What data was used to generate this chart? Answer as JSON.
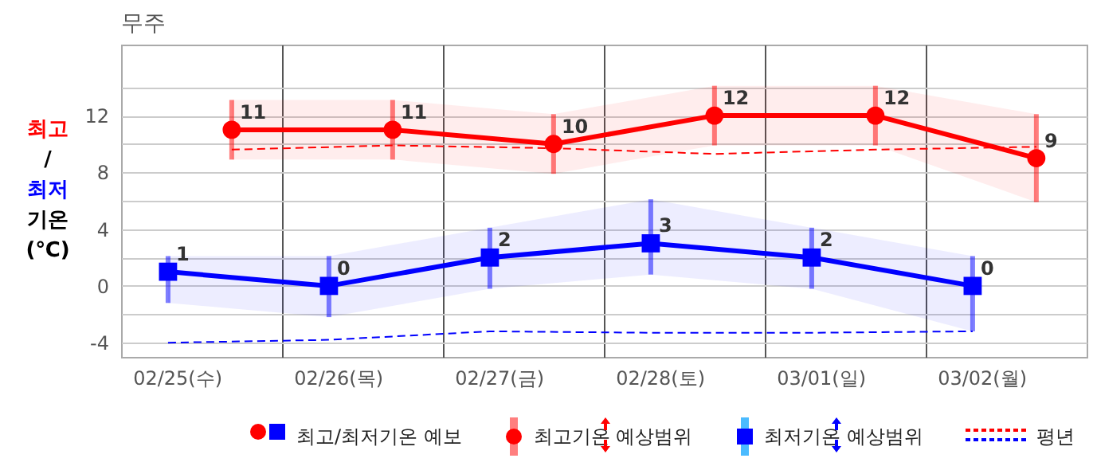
{
  "chart_data": {
    "type": "line",
    "title": "무주",
    "ylabel": "최고/최저 기온 (℃)",
    "xlim": [
      "--02-25T00:00",
      "--03-03T00:00"
    ],
    "xticks": [
      {
        "value": "--02-25T08:20",
        "label": "02/25(수)"
      },
      {
        "value": "--02-26T00:00",
        "label": null
      },
      {
        "value": "--02-26T08:20",
        "label": "02/26(목)"
      },
      {
        "value": "--02-27T00:00",
        "label": null
      },
      {
        "value": "--02-27T08:20",
        "label": "02/27(금)"
      },
      {
        "value": "--02-28T00:00",
        "label": null
      },
      {
        "value": "--02-28T08:20",
        "label": "02/28(토)"
      },
      {
        "value": "--03-01T00:00",
        "label": null
      },
      {
        "value": "--03-01T08:20",
        "label": "03/01(일)"
      },
      {
        "value": "--03-02T00:00",
        "label": null
      },
      {
        "value": "--03-02T08:20",
        "label": "03/02(월)"
      }
    ],
    "ylim": [
      -5,
      17
    ],
    "yticks": [
      -4,
      {
        "value": -2,
        "label": null
      },
      0,
      {
        "value": 2,
        "label": null
      },
      4,
      {
        "value": 6,
        "label": null
      },
      8,
      {
        "value": 10,
        "label": null
      },
      12,
      {
        "value": 14,
        "label": null
      }
    ],
    "grid": true,
    "annotations": [
      "최고/최저기온 예보",
      "최고기온 예상범위",
      "최저기온 예상범위",
      "평년"
    ],
    "series": [
      {
        "color": "#ff0000",
        "marker": "circle",
        "data_labels": true,
        "x": [
          "--02-25T16:30",
          "--02-26T16:30",
          "--02-27T16:30",
          "--02-28T16:30",
          "--03-01T16:30",
          "--03-02T16:30"
        ],
        "values": [
          11,
          11,
          10,
          12,
          12,
          9
        ],
        "errors": [
          [
            8.9,
            13.1
          ],
          [
            8.9,
            13.1
          ],
          [
            7.9,
            12.1
          ],
          [
            9.9,
            14.1
          ],
          [
            9.9,
            14.1
          ],
          [
            5.9,
            12.1
          ]
        ],
        "lower": [
          8.9,
          8.9,
          7.9,
          9.9,
          9.9,
          5.9
        ],
        "upper": [
          13.1,
          13.1,
          12.1,
          14.1,
          14.1,
          12.1
        ]
      },
      {
        "color": "#0000ff",
        "marker": "square",
        "data_labels": true,
        "x": [
          "--02-25T07:00",
          "--02-26T07:00",
          "--02-27T07:00",
          "--02-28T07:00",
          "--03-01T07:00",
          "--03-02T07:00"
        ],
        "values": [
          1,
          0,
          2,
          3,
          2,
          0
        ],
        "errors": [
          [
            -1.2,
            2.1
          ],
          [
            -2.2,
            2.1
          ],
          [
            -0.2,
            4.1
          ],
          [
            0.8,
            6.1
          ],
          [
            -0.2,
            4.1
          ],
          [
            -3.2,
            2.1
          ]
        ],
        "lower": [
          -1.2,
          -2.2,
          -0.2,
          0.8,
          -0.2,
          -3.2
        ],
        "upper": [
          2.1,
          2.1,
          4.1,
          6.1,
          4.1,
          2.1
        ]
      },
      {
        "color": "#ff0000",
        "line_style": "dashed",
        "x": [
          "--02-25T16:30",
          "--02-26T16:30",
          "--02-27T16:30",
          "--02-28T16:30",
          "--03-01T16:30",
          "--03-02T16:30"
        ],
        "values": [
          9.6,
          9.9,
          9.7,
          9.3,
          9.6,
          9.8
        ]
      },
      {
        "color": "#0000ff",
        "line_style": "dashed",
        "x": [
          "--02-25T07:00",
          "--02-26T07:00",
          "--02-27T07:00",
          "--02-28T07:00",
          "--03-01T07:00",
          "--03-02T07:00"
        ],
        "values": [
          -4.0,
          -3.8,
          -3.2,
          -3.3,
          -3.3,
          -3.2
        ]
      }
    ]
  }
}
